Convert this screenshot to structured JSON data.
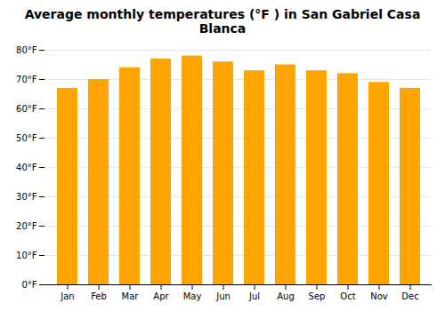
{
  "chart_data": {
    "type": "bar",
    "title": "Average monthly temperatures (°F ) in San Gabriel Casa Blanca",
    "categories": [
      "Jan",
      "Feb",
      "Mar",
      "Apr",
      "May",
      "Jun",
      "Jul",
      "Aug",
      "Sep",
      "Oct",
      "Nov",
      "Dec"
    ],
    "values": [
      67,
      70,
      74,
      77,
      78,
      76,
      73,
      75,
      73,
      72,
      69,
      67
    ],
    "color": "#FFA500",
    "ylim": [
      0,
      80
    ],
    "yticks": [
      {
        "value": 0,
        "label": "0°F"
      },
      {
        "value": 10,
        "label": "10°F"
      },
      {
        "value": 20,
        "label": "20°F"
      },
      {
        "value": 30,
        "label": "30°F"
      },
      {
        "value": 40,
        "label": "40°F"
      },
      {
        "value": 50,
        "label": "50°F"
      },
      {
        "value": 60,
        "label": "60°F"
      },
      {
        "value": 70,
        "label": "70°F"
      },
      {
        "value": 80,
        "label": "80°F"
      }
    ],
    "grid": true
  }
}
